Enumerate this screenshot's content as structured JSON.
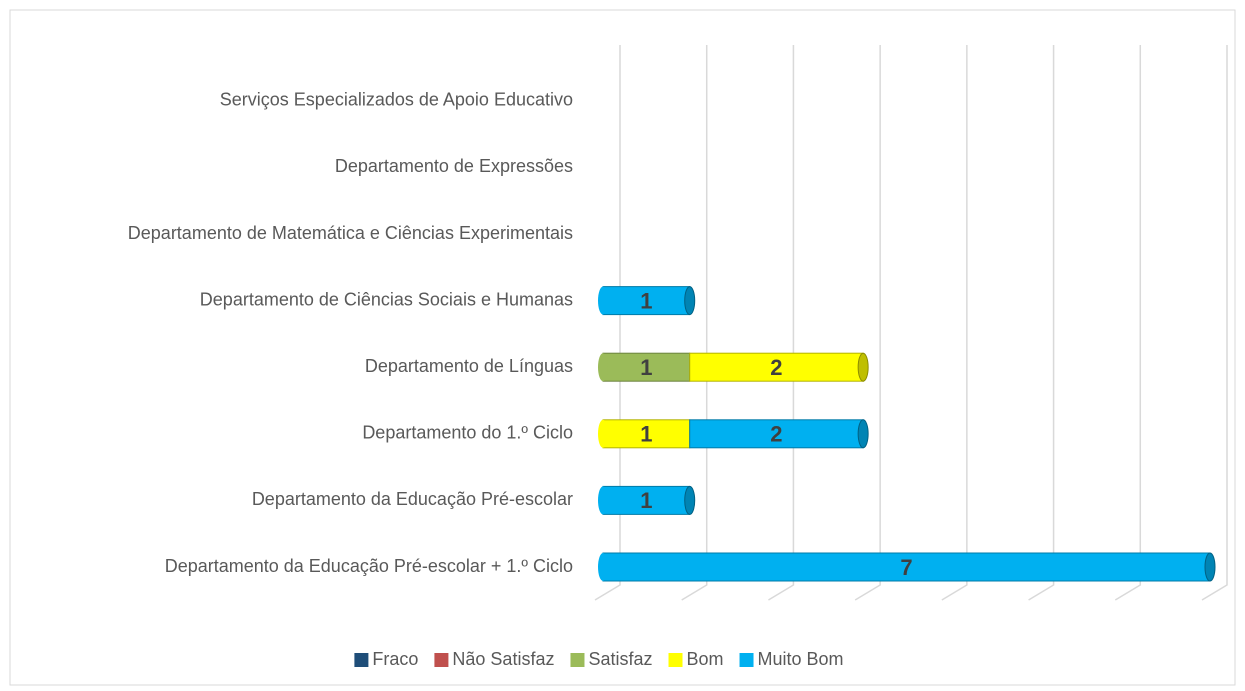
{
  "chart_data": {
    "type": "stacked-bar-horizontal",
    "categories": [
      "Departamento da Educação Pré-escolar + 1.º Ciclo",
      "Departamento da Educação Pré-escolar",
      "Departamento do 1.º Ciclo ",
      "Departamento de Línguas",
      "Departamento de Ciências Sociais e Humanas ",
      "Departamento de Matemática e Ciências Experimentais",
      "Departamento de Expressões",
      "Serviços Especializados de Apoio Educativo"
    ],
    "series": [
      {
        "name": "Fraco",
        "color": "#1f4e79",
        "values": [
          null,
          null,
          null,
          null,
          null,
          null,
          null,
          null
        ]
      },
      {
        "name": "Não Satisfaz",
        "color": "#c0504d",
        "values": [
          null,
          null,
          null,
          null,
          null,
          null,
          null,
          null
        ]
      },
      {
        "name": "Satisfaz",
        "color": "#9bbb59",
        "values": [
          null,
          null,
          null,
          1,
          null,
          null,
          null,
          null
        ]
      },
      {
        "name": "Bom",
        "color": "#ffff00",
        "values": [
          null,
          null,
          1,
          2,
          null,
          null,
          null,
          null
        ]
      },
      {
        "name": "Muito Bom",
        "color": "#00b0f0",
        "values": [
          7,
          1,
          2,
          null,
          1,
          null,
          null,
          null
        ]
      }
    ],
    "xlim": [
      0,
      7
    ],
    "xticks": [
      0,
      1,
      2,
      3,
      4,
      5,
      6,
      7
    ],
    "grid": true,
    "legend": "bottom"
  }
}
